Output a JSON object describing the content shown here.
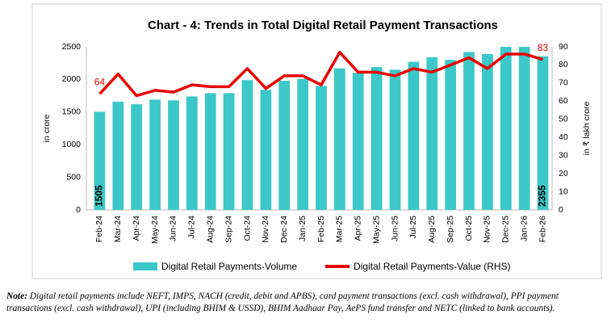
{
  "chart_data": {
    "type": "combo",
    "title": "Chart - 4: Trends in Total Digital Retail Payment Transactions",
    "ylabel": "in crore",
    "y2label": "in ₹ lakh crore",
    "categories": [
      "Feb-24",
      "Mar-24",
      "Apr-24",
      "May-24",
      "Jun-24",
      "Jul-24",
      "Aug-24",
      "Sep-24",
      "Oct-24",
      "Nov-24",
      "Dec-24",
      "Jan-25",
      "Feb-25",
      "Mar-25",
      "Apr-25",
      "May-25",
      "Jun-25",
      "Jul-25",
      "Aug-25",
      "Sep-25",
      "Oct-25",
      "Nov-25",
      "Dec-25",
      "Jan-26",
      "Feb-26"
    ],
    "series": [
      {
        "name": "Digital Retail Payments-Volume",
        "type": "bar",
        "color": "#3cc8c8",
        "values": [
          1505,
          1660,
          1620,
          1690,
          1680,
          1740,
          1790,
          1790,
          1990,
          1840,
          1980,
          2010,
          1900,
          2170,
          2100,
          2190,
          2150,
          2270,
          2340,
          2300,
          2420,
          2390,
          2500,
          2500,
          2355
        ],
        "data_labels": [
          0,
          24
        ]
      },
      {
        "name": "Digital Retail Payments-Value (RHS)",
        "type": "line",
        "axis": "y2",
        "color": "#e80000",
        "values": [
          64,
          75,
          63,
          66,
          65,
          69,
          68,
          68,
          78,
          67,
          74,
          74,
          69,
          87,
          76,
          76,
          74,
          78,
          76,
          80,
          84,
          78,
          86,
          86,
          83
        ],
        "data_labels": [
          0,
          24
        ]
      }
    ],
    "ylim": [
      0,
      2500
    ],
    "yticks": [
      0,
      500,
      1000,
      1500,
      2000,
      2500
    ],
    "y2lim": [
      0,
      90
    ],
    "y2ticks": [
      0,
      10,
      20,
      30,
      40,
      50,
      60,
      70,
      80,
      90
    ],
    "grid": false,
    "legend": "bottom"
  },
  "note": {
    "label": "Note:",
    "text": "Digital retail payments include NEFT, IMPS, NACH (credit, debit and APBS), card payment transactions (excl. cash withdrawal), PPI payment transactions (excl. cash withdrawal), UPI (including BHIM & USSD), BHIM Aadhaar Pay, AePS fund transfer and NETC (linked to bank accounts)."
  }
}
